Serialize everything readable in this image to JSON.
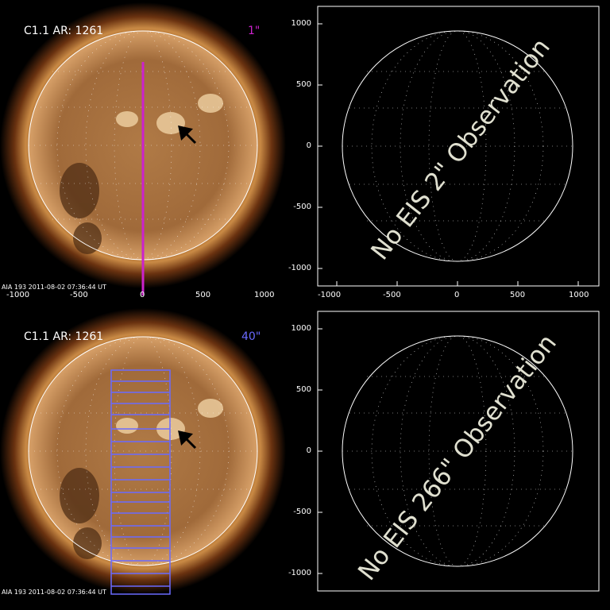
{
  "panels": {
    "top_left": {
      "flare_label": "C1.1 AR: 1261",
      "slit_label": "1\"",
      "slit_color": "#cc22cc",
      "footer": "AIA 193   2011-08-02 07:36:44 UT",
      "x_ticks": [
        "-1000",
        "-500",
        "0",
        "500",
        "1000"
      ]
    },
    "top_right": {
      "message": "No EIS 2\" Observation",
      "x_ticks": [
        "-1000",
        "-500",
        "0",
        "500",
        "1000"
      ],
      "y_ticks": [
        "1000",
        "500",
        "0",
        "-500",
        "-1000"
      ]
    },
    "bottom_left": {
      "flare_label": "C1.1 AR: 1261",
      "slit_label": "40\"",
      "raster_color": "#6a6aff",
      "footer": "AIA 193   2011-08-02 07:36:44 UT"
    },
    "bottom_right": {
      "message": "No EIS 266\" Observation",
      "y_ticks": [
        "1000",
        "500",
        "0",
        "-500",
        "-1000"
      ]
    }
  },
  "colors": {
    "background": "#000000",
    "sun_core": "#c8925a",
    "sun_limb": "#7a3f12",
    "grid": "#ffffff"
  }
}
